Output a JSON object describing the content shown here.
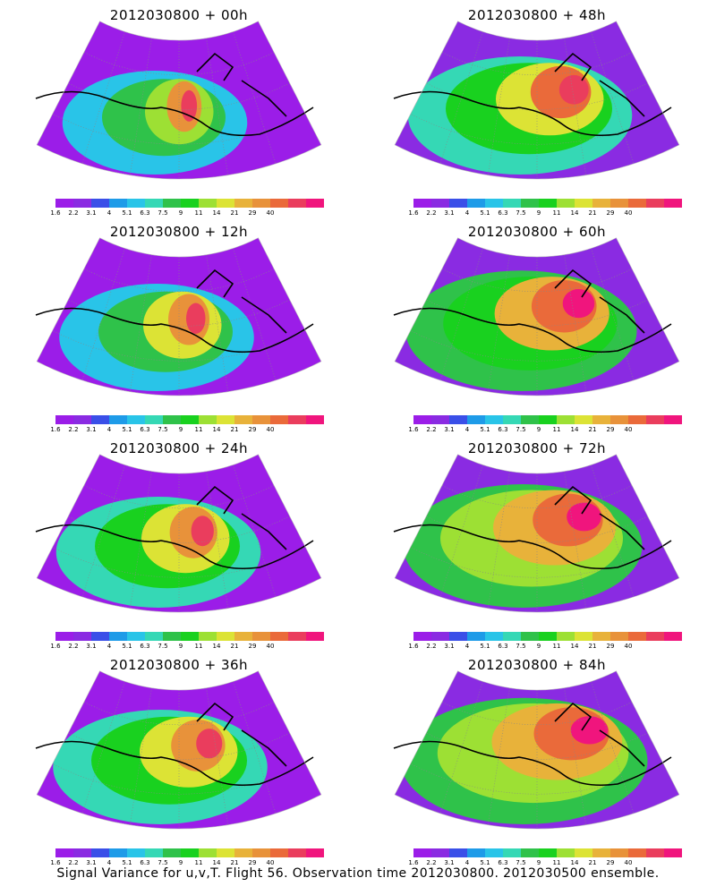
{
  "panels": [
    {
      "title": "2012030800 + 00h",
      "hot": 0.15
    },
    {
      "title": "2012030800 + 48h",
      "hot": 0.55
    },
    {
      "title": "2012030800 + 12h",
      "hot": 0.25
    },
    {
      "title": "2012030800 + 60h",
      "hot": 0.62
    },
    {
      "title": "2012030800 + 24h",
      "hot": 0.35
    },
    {
      "title": "2012030800 + 72h",
      "hot": 0.7
    },
    {
      "title": "2012030800 + 36h",
      "hot": 0.45
    },
    {
      "title": "2012030800 + 84h",
      "hot": 0.78
    }
  ],
  "legend": {
    "colors": [
      "#9b1de8",
      "#8a2be2",
      "#3a4fe8",
      "#1e9be8",
      "#29c4e8",
      "#35d8b5",
      "#2fc24a",
      "#19d11f",
      "#9de034",
      "#dce335",
      "#e8b23a",
      "#e8923a",
      "#ea6a3a",
      "#ea3d5d",
      "#f0157d"
    ],
    "ticks": [
      "1.6",
      "2.2",
      "3.1",
      "4",
      "5.1",
      "6.3",
      "7.5",
      "9",
      "11",
      "14",
      "21",
      "29",
      "40"
    ]
  },
  "caption": "Signal Variance for u,v,T. Flight 56. Observation time 2012030800. 2012030500 ensemble."
}
